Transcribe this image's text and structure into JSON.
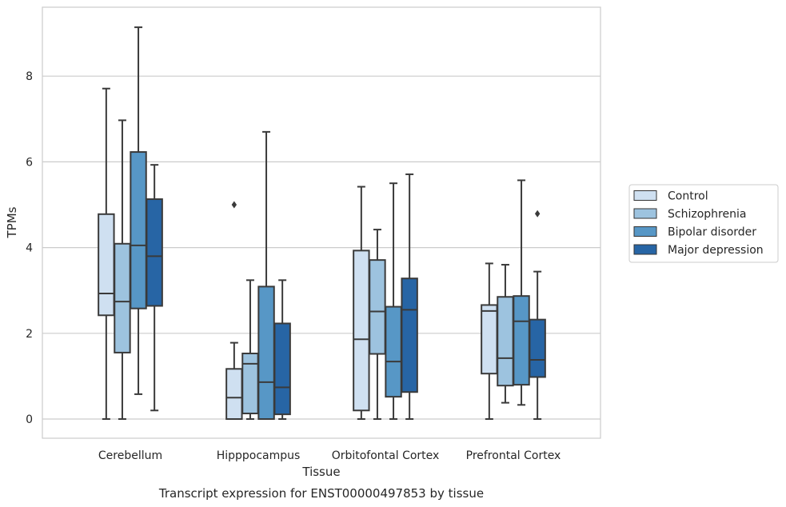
{
  "chart_data": {
    "type": "boxplot",
    "title": "",
    "xlabel": "Tissue",
    "ylabel": "TPMs",
    "caption": "Transcript expression for ENST00000497853 by tissue",
    "ylim": [
      -0.45,
      9.6
    ],
    "yticks": [
      0,
      2,
      4,
      6,
      8
    ],
    "grid": "horizontal",
    "legend_position": "right",
    "categories": [
      "Cerebellum",
      "Hipppocampus",
      "Orbitofontal Cortex",
      "Prefrontal Cortex"
    ],
    "series": [
      {
        "name": "Control",
        "color": "#cfe0f1",
        "boxes": [
          {
            "min": 0.0,
            "q1": 2.42,
            "median": 2.93,
            "q3": 4.78,
            "max": 7.71,
            "outliers": []
          },
          {
            "min": 0.0,
            "q1": 0.0,
            "median": 0.5,
            "q3": 1.17,
            "max": 1.78,
            "outliers": [
              5.0
            ]
          },
          {
            "min": 0.0,
            "q1": 0.2,
            "median": 1.86,
            "q3": 3.93,
            "max": 5.42,
            "outliers": []
          },
          {
            "min": 0.0,
            "q1": 1.06,
            "median": 2.52,
            "q3": 2.66,
            "max": 3.63,
            "outliers": []
          }
        ]
      },
      {
        "name": "Schizophrenia",
        "color": "#9dc3df",
        "boxes": [
          {
            "min": 0.0,
            "q1": 1.55,
            "median": 2.74,
            "q3": 4.09,
            "max": 6.97,
            "outliers": []
          },
          {
            "min": 0.0,
            "q1": 0.13,
            "median": 1.29,
            "q3": 1.53,
            "max": 3.24,
            "outliers": []
          },
          {
            "min": 0.0,
            "q1": 1.52,
            "median": 2.51,
            "q3": 3.71,
            "max": 4.42,
            "outliers": []
          },
          {
            "min": 0.38,
            "q1": 0.78,
            "median": 1.42,
            "q3": 2.85,
            "max": 3.6,
            "outliers": []
          }
        ]
      },
      {
        "name": "Bipolar disorder",
        "color": "#5797c6",
        "boxes": [
          {
            "min": 0.58,
            "q1": 2.58,
            "median": 4.05,
            "q3": 6.23,
            "max": 9.14,
            "outliers": []
          },
          {
            "min": 0.0,
            "q1": 0.0,
            "median": 0.86,
            "q3": 3.09,
            "max": 6.7,
            "outliers": []
          },
          {
            "min": 0.0,
            "q1": 0.52,
            "median": 1.34,
            "q3": 2.62,
            "max": 5.5,
            "outliers": []
          },
          {
            "min": 0.33,
            "q1": 0.8,
            "median": 2.28,
            "q3": 2.87,
            "max": 5.57,
            "outliers": []
          }
        ]
      },
      {
        "name": "Major depression",
        "color": "#2765a5",
        "boxes": [
          {
            "min": 0.2,
            "q1": 2.64,
            "median": 3.8,
            "q3": 5.13,
            "max": 5.93,
            "outliers": []
          },
          {
            "min": 0.0,
            "q1": 0.11,
            "median": 0.74,
            "q3": 2.23,
            "max": 3.24,
            "outliers": []
          },
          {
            "min": 0.0,
            "q1": 0.63,
            "median": 2.55,
            "q3": 3.28,
            "max": 5.71,
            "outliers": []
          },
          {
            "min": 0.0,
            "q1": 0.98,
            "median": 1.38,
            "q3": 2.32,
            "max": 3.44,
            "outliers": [
              4.79
            ]
          }
        ]
      }
    ]
  }
}
